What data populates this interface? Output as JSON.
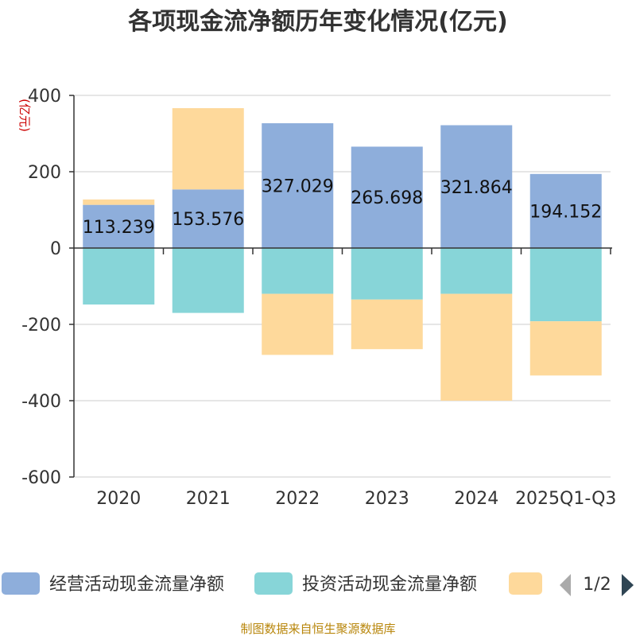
{
  "chart_data": {
    "type": "bar",
    "title": "各项现金流净额历年变化情况(亿元)",
    "ylabel": "(亿元)",
    "ylim": [
      -600,
      400
    ],
    "yticks": [
      400,
      200,
      0,
      -200,
      -400,
      -600
    ],
    "categories": [
      "2020",
      "2021",
      "2022",
      "2023",
      "2024",
      "2025Q1-Q3"
    ],
    "series": [
      {
        "name": "经营活动现金流量净额",
        "color": "#8eaedb",
        "values": [
          113.239,
          153.576,
          327.029,
          265.698,
          321.864,
          194.152
        ]
      },
      {
        "name": "投资活动现金流量净额",
        "color": "#87d5d8",
        "values": [
          -148,
          -170,
          -120,
          -135,
          -120,
          -192
        ]
      },
      {
        "name": "",
        "color": "#fed99b",
        "values": [
          14,
          213,
          -160,
          -130,
          -280,
          -142
        ]
      }
    ],
    "data_labels": [
      "113.239",
      "153.576",
      "327.029",
      "265.698",
      "321.864",
      "194.152"
    ]
  },
  "legend": {
    "page": "1/2"
  },
  "source": "制图数据来自恒生聚源数据库"
}
